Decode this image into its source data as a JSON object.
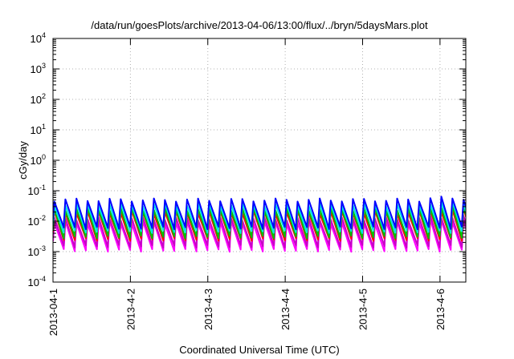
{
  "chart_data": {
    "type": "line",
    "title": "/data/run/goesPlots/archive/2013-04-06/13:00/flux/../bryn/5daysMars.plot",
    "xlabel": "Coordinated Universal Time (UTC)",
    "ylabel": "cGy/day",
    "y_scale": "log",
    "ylim": [
      0.0001,
      10000
    ],
    "xlim": [
      "2013-04-01 00:00",
      "2013-04-06 08:00"
    ],
    "grid": true,
    "legend": "none",
    "x_ticks": [
      "2013-04-1",
      "2013-4-2",
      "2013-4-3",
      "2013-4-4",
      "2013-4-5",
      "2013-4-6"
    ],
    "y_ticks": [
      {
        "base": "10",
        "exp": "-4"
      },
      {
        "base": "10",
        "exp": "-3"
      },
      {
        "base": "10",
        "exp": "-2"
      },
      {
        "base": "10",
        "exp": "-1"
      },
      {
        "base": "10",
        "exp": "0"
      },
      {
        "base": "10",
        "exp": "1"
      },
      {
        "base": "10",
        "exp": "2"
      },
      {
        "base": "10",
        "exp": "3"
      },
      {
        "base": "10",
        "exp": "4"
      }
    ],
    "pattern": {
      "cycles_per_day": 7,
      "description_free": true
    },
    "series": [
      {
        "color": "#ff00ff",
        "peak": 0.009,
        "trough": 0.0011
      },
      {
        "color": "#c800c8",
        "peak": 0.012,
        "trough": 0.0015
      },
      {
        "color": "#ff0000",
        "peak": 0.02,
        "trough": 0.0025
      },
      {
        "color": "#00c000",
        "peak": 0.025,
        "trough": 0.003
      },
      {
        "color": "#00e5e5",
        "peak": 0.035,
        "trough": 0.0045
      },
      {
        "color": "#0000ff",
        "peak": 0.05,
        "trough": 0.006
      }
    ]
  }
}
